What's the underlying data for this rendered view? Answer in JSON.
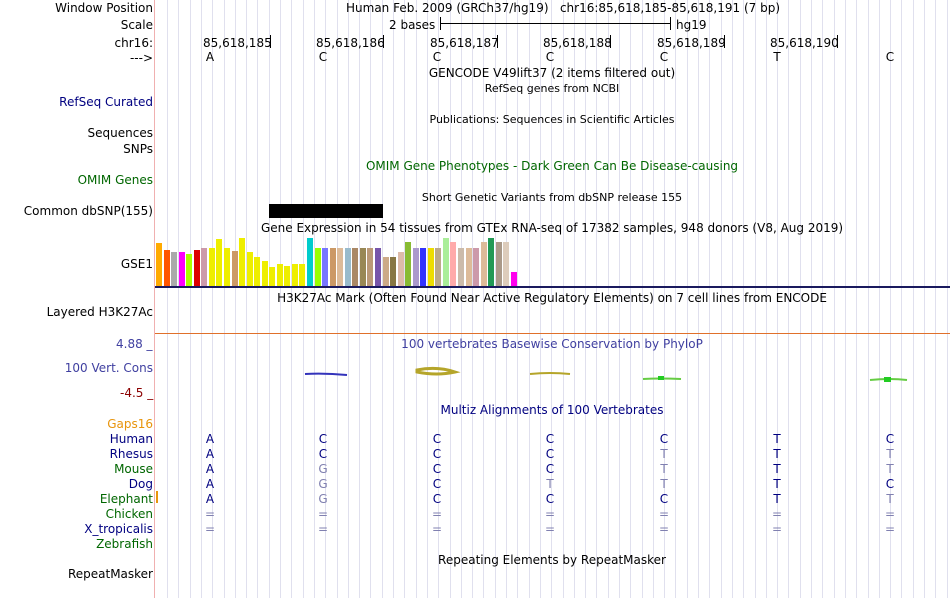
{
  "header": {
    "window_position_label": "Window Position",
    "window_position_value": "Human Feb. 2009 (GRCh37/hg19)   chr16:85,618,185-85,618,191 (7 bp)",
    "scale_label": "Scale",
    "scale_value": "2 bases",
    "scale_assembly": "hg19",
    "chrom_label": "chr16:",
    "strand_label": "--->"
  },
  "ruler_positions": [
    "85,618,185",
    "85,618,186",
    "85,618,187",
    "85,618,188",
    "85,618,189",
    "85,618,190"
  ],
  "base_sequence": [
    "A",
    "C",
    "C",
    "C",
    "C",
    "T",
    "C"
  ],
  "tracks": {
    "gencode_title": "GENCODE V49lift37 (2 items filtered out)",
    "refseq_title": "RefSeq genes from NCBI",
    "refseq_label": "RefSeq Curated",
    "publications_title": "Publications: Sequences in Scientific Articles",
    "sequences_label": "Sequences",
    "snps_label": "SNPs",
    "omim_title": "OMIM Gene Phenotypes - Dark Green Can Be Disease-causing",
    "omim_label": "OMIM Genes",
    "dbsnp_title": "Short Genetic Variants from dbSNP release 155",
    "dbsnp_label": "Common dbSNP(155)",
    "gtex_title": "Gene Expression in 54 tissues from GTEx RNA-seq of 17382 samples, 948 donors (V8, Aug 2019)",
    "gtex_label": "GSE1",
    "h3k27ac_title": "H3K27Ac Mark (Often Found Near Active Regulatory Elements) on 7 cell lines from ENCODE",
    "h3k27ac_label": "Layered H3K27Ac",
    "phylop_title": "100 vertebrates Basewise Conservation by PhyloP",
    "phylop_label": "100 Vert. Cons",
    "phylop_max": "4.88 _",
    "phylop_min": "-4.5 _",
    "multiz_title": "Multiz Alignments of 100 Vertebrates",
    "gaps_label": "Gaps16",
    "repeat_title": "Repeating Elements by RepeatMasker",
    "repeat_label": "RepeatMasker"
  },
  "gtex_bars": [
    {
      "color": "#FFAA00",
      "height": 0.89
    },
    {
      "color": "#FF5500",
      "height": 0.74
    },
    {
      "color": "#AAAAAA",
      "height": 0.7
    },
    {
      "color": "#FF00FF",
      "height": 0.7
    },
    {
      "color": "#AAFF00",
      "height": 0.66
    },
    {
      "color": "#DD0000",
      "height": 0.76
    },
    {
      "color": "#CC99AA",
      "height": 0.8
    },
    {
      "color": "#EEEE00",
      "height": 0.8
    },
    {
      "color": "#EEEE00",
      "height": 0.98
    },
    {
      "color": "#EEEE00",
      "height": 0.8
    },
    {
      "color": "#CC9966",
      "height": 0.73
    },
    {
      "color": "#EEEE00",
      "height": 1.0
    },
    {
      "color": "#EEEE00",
      "height": 0.71
    },
    {
      "color": "#EEEE00",
      "height": 0.61
    },
    {
      "color": "#EEEE00",
      "height": 0.52
    },
    {
      "color": "#EEEE00",
      "height": 0.4
    },
    {
      "color": "#EEEE00",
      "height": 0.46
    },
    {
      "color": "#EEEE00",
      "height": 0.41
    },
    {
      "color": "#EEEE00",
      "height": 0.46
    },
    {
      "color": "#EEEE00",
      "height": 0.46
    },
    {
      "color": "#00CCCC",
      "height": 1.0
    },
    {
      "color": "#99FF00",
      "height": 0.8
    },
    {
      "color": "#7777FF",
      "height": 0.8
    },
    {
      "color": "#CC9966",
      "height": 0.8
    },
    {
      "color": "#DDBB99",
      "height": 0.8
    },
    {
      "color": "#99BBCC",
      "height": 0.8
    },
    {
      "color": "#AA8866",
      "height": 0.8
    },
    {
      "color": "#998855",
      "height": 0.8
    },
    {
      "color": "#BB9977",
      "height": 0.8
    },
    {
      "color": "#7755AA",
      "height": 0.8
    },
    {
      "color": "#CCAA88",
      "height": 0.6
    },
    {
      "color": "#887744",
      "height": 0.6
    },
    {
      "color": "#DDBBAA",
      "height": 0.7
    },
    {
      "color": "#88BB33",
      "height": 0.92
    },
    {
      "color": "#AA99CC",
      "height": 0.8
    },
    {
      "color": "#3333FF",
      "height": 0.8
    },
    {
      "color": "#EEDD00",
      "height": 0.8
    },
    {
      "color": "#BBAA88",
      "height": 0.8
    },
    {
      "color": "#AAEE99",
      "height": 1.0
    },
    {
      "color": "#FFAAAA",
      "height": 0.92
    },
    {
      "color": "#CCBBAA",
      "height": 0.8
    },
    {
      "color": "#DDBB99",
      "height": 0.8
    },
    {
      "color": "#CC99AA",
      "height": 0.8
    },
    {
      "color": "#DDBB99",
      "height": 0.92
    },
    {
      "color": "#229955",
      "height": 1.0
    },
    {
      "color": "#AA9988",
      "height": 0.92
    },
    {
      "color": "#DDCCBB",
      "height": 0.92
    },
    {
      "color": "#FF00EE",
      "height": 0.3
    }
  ],
  "species": [
    {
      "name": "Human",
      "color": "#000080",
      "bases": [
        "A",
        "C",
        "C",
        "C",
        "C",
        "T",
        "C"
      ],
      "diff": [
        0,
        0,
        0,
        0,
        0,
        0,
        0
      ]
    },
    {
      "name": "Rhesus",
      "color": "#000080",
      "bases": [
        "A",
        "C",
        "C",
        "C",
        "T",
        "T",
        "T"
      ],
      "diff": [
        0,
        0,
        0,
        0,
        1,
        0,
        1
      ]
    },
    {
      "name": "Mouse",
      "color": "#006600",
      "bases": [
        "A",
        "G",
        "C",
        "C",
        "T",
        "T",
        "T"
      ],
      "diff": [
        0,
        1,
        0,
        0,
        1,
        0,
        1
      ]
    },
    {
      "name": "Dog",
      "color": "#000080",
      "bases": [
        "A",
        "G",
        "C",
        "T",
        "T",
        "T",
        "C"
      ],
      "diff": [
        0,
        1,
        0,
        1,
        1,
        0,
        0
      ]
    },
    {
      "name": "Elephant",
      "color": "#006600",
      "bases": [
        "A",
        "G",
        "C",
        "C",
        "C",
        "T",
        "T"
      ],
      "diff": [
        0,
        1,
        0,
        0,
        0,
        0,
        1
      ]
    },
    {
      "name": "Chicken",
      "color": "#006600",
      "bases": [
        "=",
        "=",
        "=",
        "=",
        "=",
        "=",
        "="
      ],
      "diff": [
        1,
        1,
        1,
        1,
        1,
        1,
        1
      ]
    },
    {
      "name": "X_tropicalis",
      "color": "#000080",
      "bases": [
        "=",
        "=",
        "=",
        "=",
        "=",
        "=",
        "="
      ],
      "diff": [
        1,
        1,
        1,
        1,
        1,
        1,
        1
      ]
    },
    {
      "name": "Zebrafish",
      "color": "#006600",
      "bases": [
        "",
        "",
        "",
        "",
        "",
        "",
        ""
      ],
      "diff": [
        0,
        0,
        0,
        0,
        0,
        0,
        0
      ]
    }
  ],
  "colors": {
    "label_blue": "#000080",
    "omim_green": "#006600",
    "phylop_blue": "#3f3fa0",
    "phylop_red": "#8b0000",
    "gaps_orange": "#E8940C",
    "diff_base": "#8080B0",
    "h3k27ac_line": "#E0702A"
  }
}
